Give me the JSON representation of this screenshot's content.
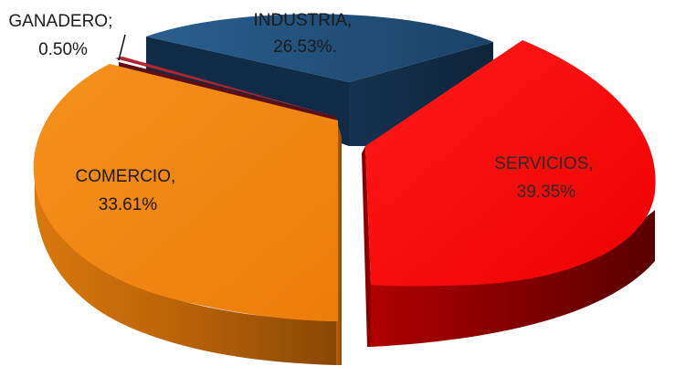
{
  "chart_data": {
    "type": "pie",
    "style": "3d-exploded",
    "slices": [
      {
        "label": "INDUSTRIA",
        "value": 26.53,
        "label_text": [
          "INDUSTRIA,",
          "26.53%."
        ],
        "color": "#1f4e79"
      },
      {
        "label": "SERVICIOS",
        "value": 39.35,
        "label_text": [
          "SERVICIOS,",
          "39.35%"
        ],
        "color": "#ff0000"
      },
      {
        "label": "COMERCIO",
        "value": 33.61,
        "label_text": [
          "COMERCIO,",
          "33.61%"
        ],
        "color": "#f0820f"
      },
      {
        "label": "GANADERO",
        "value": 0.5,
        "label_text": [
          "GANADERO;",
          "0.50%"
        ],
        "color": "#a3212a"
      }
    ]
  }
}
